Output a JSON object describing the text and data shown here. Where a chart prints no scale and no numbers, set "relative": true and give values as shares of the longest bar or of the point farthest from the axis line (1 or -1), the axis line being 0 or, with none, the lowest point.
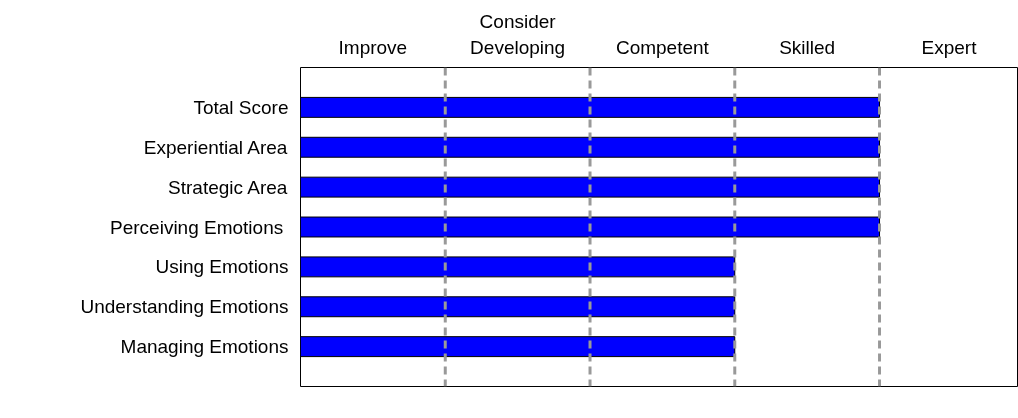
{
  "chart_data": {
    "type": "bar",
    "orientation": "horizontal",
    "relative": true,
    "grid": false,
    "categories": [
      "Total Score",
      "Experiential Area",
      "Strategic Area",
      "Perceiving  Emotions",
      "Using Emotions",
      "Understanding Emotions",
      "Managing Emotions"
    ],
    "values": [
      1,
      1,
      1,
      1,
      0.75,
      0.75,
      0.75
    ],
    "color": "#0000ff",
    "ref_lines": [
      {
        "axis": "x",
        "value": 0.25,
        "color": "#999999",
        "line_style": "dashed"
      },
      {
        "axis": "x",
        "value": 0.5,
        "color": "#999999",
        "line_style": "dashed"
      },
      {
        "axis": "x",
        "value": 0.75,
        "color": "#999999",
        "line_style": "dashed"
      },
      {
        "axis": "x",
        "value": 1,
        "color": "#999999",
        "line_style": "dashed"
      }
    ],
    "annotations": [
      "Improve",
      "Consider\nDeveloping",
      "Competent",
      "Skilled",
      "Expert"
    ]
  }
}
